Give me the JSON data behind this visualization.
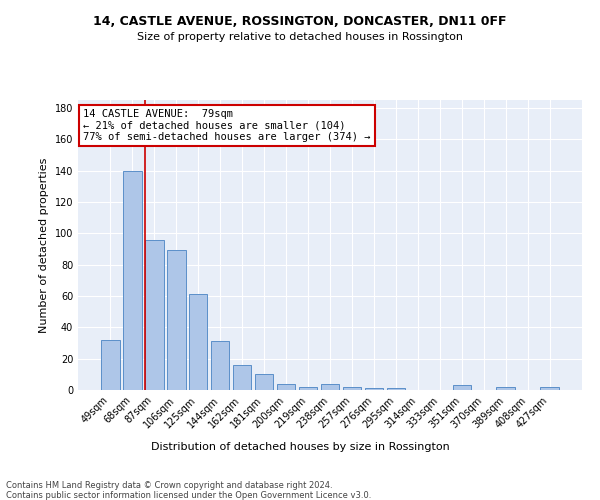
{
  "title": "14, CASTLE AVENUE, ROSSINGTON, DONCASTER, DN11 0FF",
  "subtitle": "Size of property relative to detached houses in Rossington",
  "xlabel": "Distribution of detached houses by size in Rossington",
  "ylabel": "Number of detached properties",
  "bar_labels": [
    "49sqm",
    "68sqm",
    "87sqm",
    "106sqm",
    "125sqm",
    "144sqm",
    "162sqm",
    "181sqm",
    "200sqm",
    "219sqm",
    "238sqm",
    "257sqm",
    "276sqm",
    "295sqm",
    "314sqm",
    "333sqm",
    "351sqm",
    "370sqm",
    "389sqm",
    "408sqm",
    "427sqm"
  ],
  "bar_values": [
    32,
    140,
    96,
    89,
    61,
    31,
    16,
    10,
    4,
    2,
    4,
    2,
    1,
    1,
    0,
    0,
    3,
    0,
    2,
    0,
    2
  ],
  "bar_color": "#aec6e8",
  "bar_edge_color": "#5b8fc9",
  "annotation_line1": "14 CASTLE AVENUE:  79sqm",
  "annotation_line2": "← 21% of detached houses are smaller (104)",
  "annotation_line3": "77% of semi-detached houses are larger (374) →",
  "annotation_box_color": "#ffffff",
  "annotation_box_edge_color": "#cc0000",
  "vline_color": "#cc0000",
  "background_color": "#e8eef8",
  "footer_text": "Contains HM Land Registry data © Crown copyright and database right 2024.\nContains public sector information licensed under the Open Government Licence v3.0.",
  "ylim": [
    0,
    185
  ],
  "yticks": [
    0,
    20,
    40,
    60,
    80,
    100,
    120,
    140,
    160,
    180
  ],
  "title_fontsize": 9,
  "subtitle_fontsize": 8,
  "axis_label_fontsize": 8,
  "tick_fontsize": 7,
  "annotation_fontsize": 7.5,
  "footer_fontsize": 6
}
